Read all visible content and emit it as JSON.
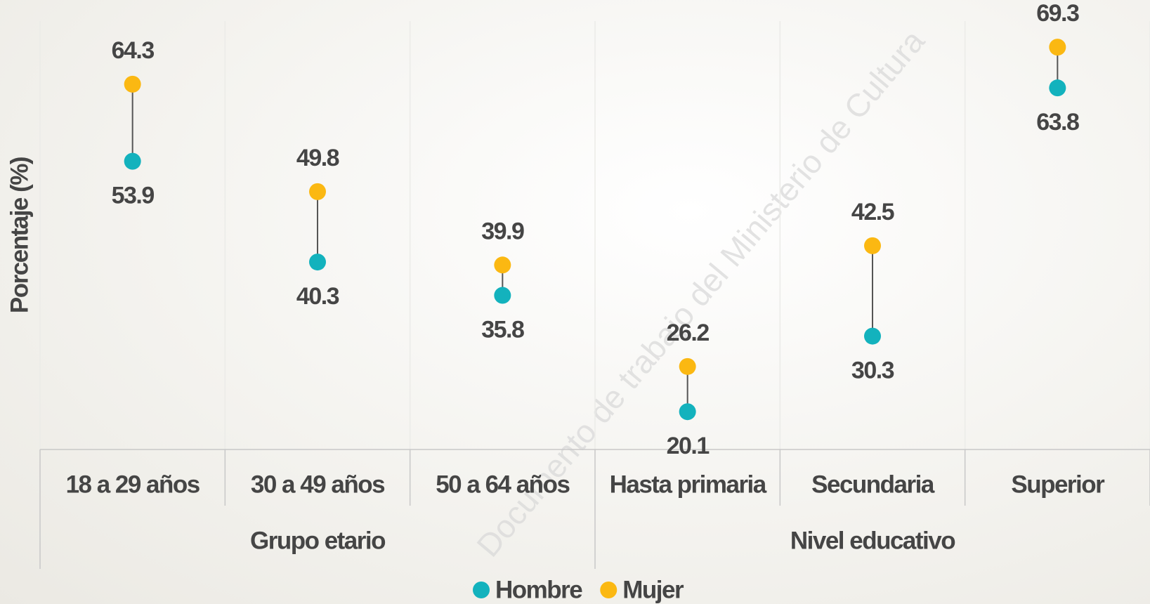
{
  "chart_data": {
    "type": "dumbbell",
    "y_axis_label": "Porcentaje (%)",
    "categories": [
      "18 a 29 años",
      "30 a 49 años",
      "50 a 64 años",
      "Hasta primaria",
      "Secundaria",
      "Superior"
    ],
    "groups": [
      {
        "label": "Grupo etario",
        "span": [
          0,
          2
        ]
      },
      {
        "label": "Nivel educativo",
        "span": [
          3,
          5
        ]
      }
    ],
    "series": [
      {
        "name": "Hombre",
        "color": "#13b2bd",
        "values": [
          53.9,
          40.3,
          35.8,
          20.1,
          30.3,
          63.8
        ]
      },
      {
        "name": "Mujer",
        "color": "#fbb812",
        "values": [
          64.3,
          49.8,
          39.9,
          26.2,
          42.5,
          69.3
        ]
      }
    ],
    "ylim": [
      15,
      75
    ],
    "watermark": "Documento de trabajo del Ministerio de Cultura"
  }
}
